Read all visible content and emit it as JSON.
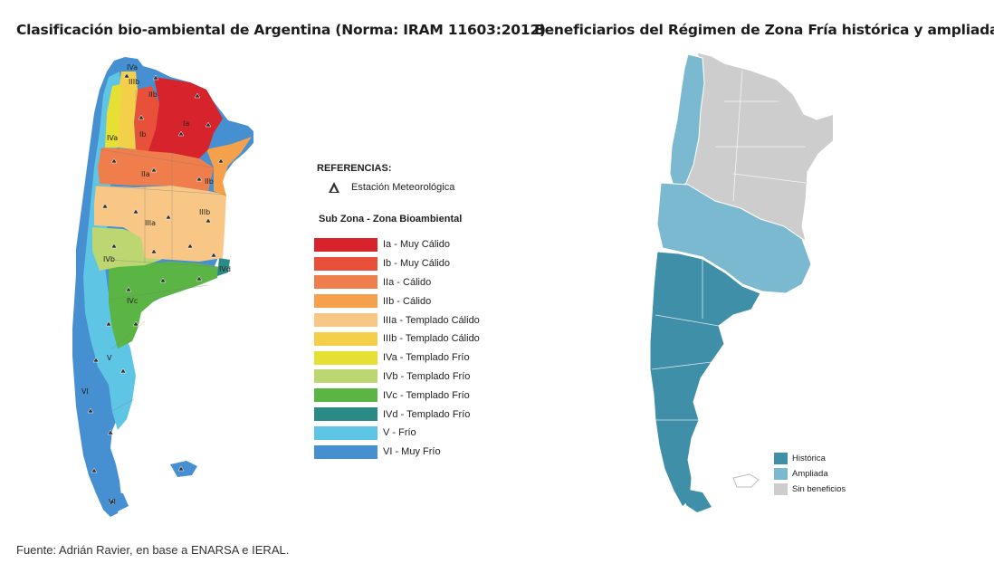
{
  "titles": {
    "left": "Clasificación bio-ambiental de Argentina (Norma: IRAM 11603:2012)",
    "right": "Beneficiarios del Régimen de Zona Fría histórica y ampliada"
  },
  "left_map": {
    "references_heading": "REFERENCIAS:",
    "station_label": "Estación Meteorológica",
    "zones_heading": "Sub Zona - Zona Bioambiental",
    "zones": [
      {
        "label": "Ia - Muy Cálido",
        "color": "#d7232c"
      },
      {
        "label": "Ib - Muy Cálido",
        "color": "#e9503a"
      },
      {
        "label": "IIa - Cálido",
        "color": "#f07e4c"
      },
      {
        "label": "IIb - Cálido",
        "color": "#f5a04a"
      },
      {
        "label": "IIIa - Templado Cálido",
        "color": "#f8c786"
      },
      {
        "label": "IIIb - Templado Cálido",
        "color": "#f4d04a"
      },
      {
        "label": "IVa - Templado Frío",
        "color": "#e5e033"
      },
      {
        "label": "IVb - Templado Frío",
        "color": "#bcd672"
      },
      {
        "label": "IVc - Templado Frío",
        "color": "#5bb545"
      },
      {
        "label": "IVd - Templado Frío",
        "color": "#2a8a86"
      },
      {
        "label": "V - Frío",
        "color": "#5ec5e4"
      },
      {
        "label": "VI - Muy Frío",
        "color": "#4690d2"
      }
    ],
    "map_labels": [
      "IVa",
      "IIIb",
      "IIb",
      "Ia",
      "Ib",
      "IVa",
      "IIa",
      "IIb",
      "IIIb",
      "IIIa",
      "IVb",
      "IVd",
      "IVc",
      "V",
      "VI",
      "VI"
    ]
  },
  "right_map": {
    "legend": [
      {
        "label": "Histórica",
        "color": "#3f8fa8"
      },
      {
        "label": "Ampliada",
        "color": "#7ab9d0"
      },
      {
        "label": "Sin beneficios",
        "color": "#cdcdcd"
      }
    ]
  },
  "source": "Fuente: Adrián Ravier, en base a ENARSA e IERAL."
}
